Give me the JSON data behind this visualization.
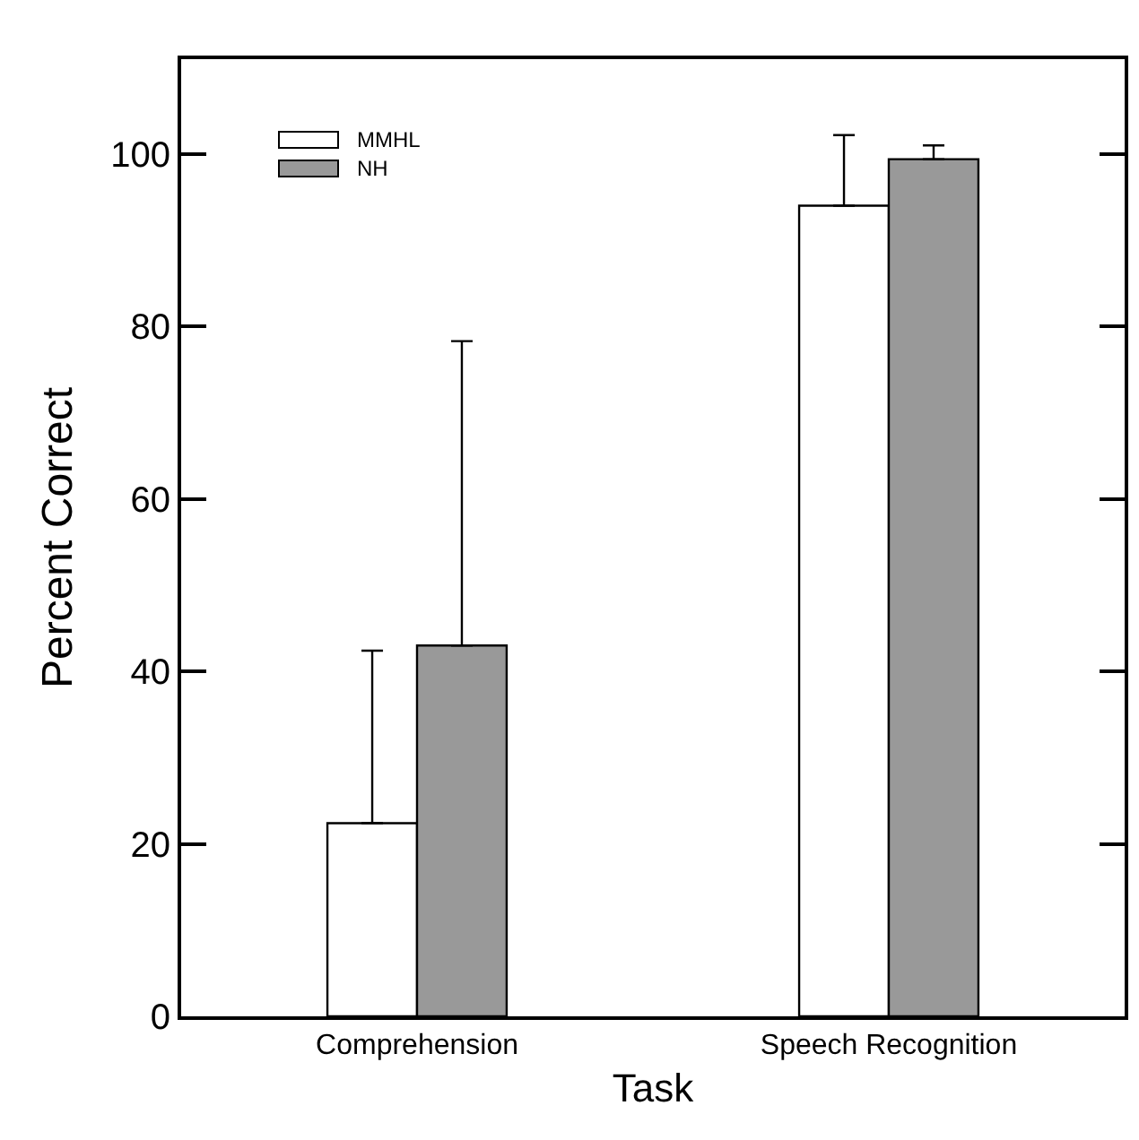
{
  "chart_data": {
    "type": "bar",
    "xlabel": "Task",
    "ylabel": "Percent Correct",
    "categories": [
      "Comprehension",
      "Speech Recognition"
    ],
    "series": [
      {
        "name": "MMHL",
        "color": "#ffffff",
        "values": [
          22.4,
          94.0
        ],
        "errors": [
          [
            22.4,
            42.4
          ],
          [
            94.0,
            102.2
          ]
        ]
      },
      {
        "name": "NH",
        "color": "#999999",
        "values": [
          43.0,
          99.4
        ],
        "errors": [
          [
            43.0,
            78.3
          ],
          [
            99.4,
            101.0
          ]
        ]
      }
    ],
    "ylim": [
      0,
      111
    ],
    "yticks": [
      0,
      20,
      40,
      60,
      80,
      100
    ],
    "grid": false,
    "legend": "top left"
  }
}
